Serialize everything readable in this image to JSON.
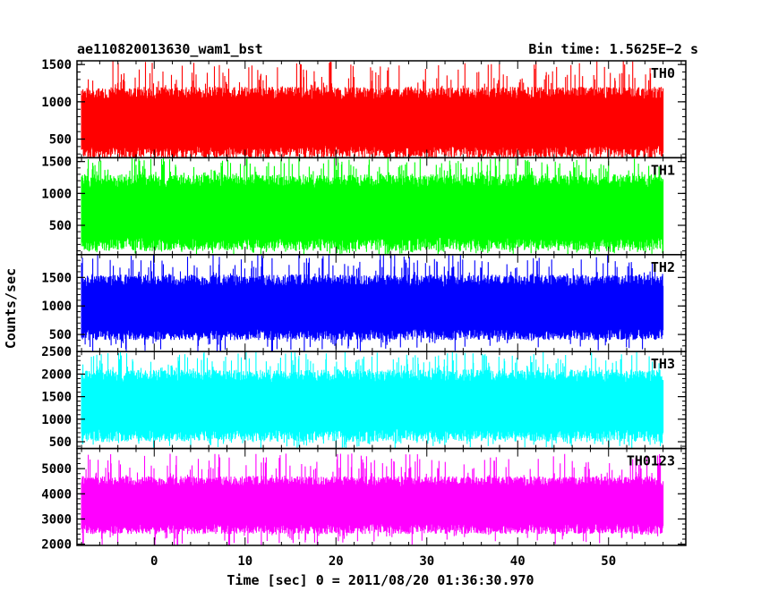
{
  "chart_data": {
    "type": "line",
    "title_left": "ae110820013630_wam1_bst",
    "title_right": "Bin time: 1.5625E−2 s",
    "xlabel": "Time [sec] 0 = 2011/08/20 01:36:30.970",
    "ylabel": "Counts/sec",
    "xlim": [
      -8.5,
      58.5
    ],
    "data_x_range": [
      -8,
      56
    ],
    "xticks": [
      0,
      10,
      20,
      30,
      40,
      50
    ],
    "grid": false,
    "panels": [
      {
        "name": "TH0",
        "color": "#ff0000",
        "ylim": [
          250,
          1550
        ],
        "yticks": [
          500,
          1000,
          1500
        ],
        "typical_range": [
          250,
          1200
        ],
        "peak_range": [
          1200,
          1550
        ],
        "median": 720
      },
      {
        "name": "TH1",
        "color": "#00ff00",
        "ylim": [
          40,
          1560
        ],
        "yticks": [
          500,
          1000,
          1500
        ],
        "typical_range": [
          100,
          1300
        ],
        "peak_range": [
          1300,
          1560
        ],
        "median": 700
      },
      {
        "name": "TH2",
        "color": "#0000ff",
        "ylim": [
          200,
          1900
        ],
        "yticks": [
          500,
          1000,
          1500
        ],
        "typical_range": [
          400,
          1550
        ],
        "peak_range": [
          1550,
          1900
        ],
        "median": 950
      },
      {
        "name": "TH3",
        "color": "#00ffff",
        "ylim": [
          350,
          2500
        ],
        "yticks": [
          500,
          1000,
          1500,
          2000,
          2500
        ],
        "typical_range": [
          500,
          2100
        ],
        "peak_range": [
          2100,
          2500
        ],
        "median": 1300
      },
      {
        "name": "TH0123",
        "color": "#ff00ff",
        "ylim": [
          1950,
          5800
        ],
        "yticks": [
          2000,
          3000,
          4000,
          5000
        ],
        "typical_range": [
          2400,
          4700
        ],
        "peak_range": [
          4700,
          5600
        ],
        "median": 3550
      }
    ]
  }
}
